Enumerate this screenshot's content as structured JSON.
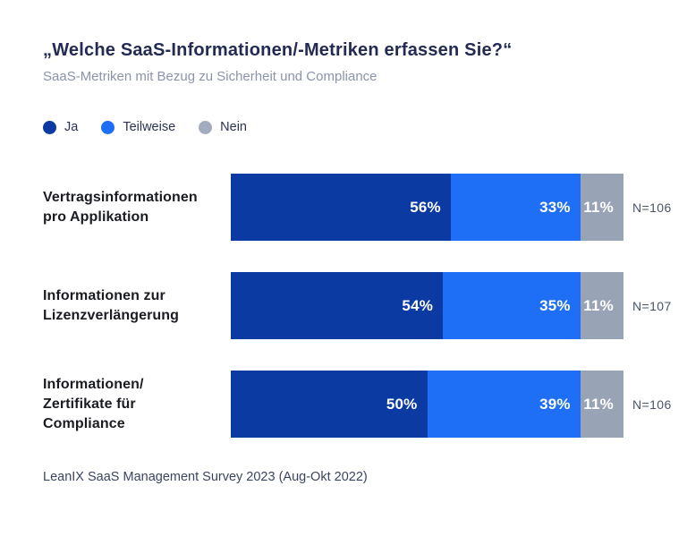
{
  "page": {
    "title": "„Welche SaaS-Informationen/-Metriken erfassen Sie?“",
    "subtitle": "SaaS-Metriken mit Bezug zu Sicherheit und Compliance",
    "source": "LeanIX SaaS Management Survey 2023 (Aug-Okt 2022)"
  },
  "colors": {
    "ja": "#0C3AA3",
    "teilweise": "#1E6FF5",
    "nein": "#99A3B6",
    "background": "#FFFFFF",
    "title_text": "#232B52",
    "subtitle_text": "#8B94A7",
    "row_label_text": "#1B1C22",
    "n_label_text": "#4A5468",
    "source_text": "#3A4560",
    "bar_value_text": "#FFFFFF"
  },
  "legend": {
    "items": [
      {
        "label": "Ja",
        "color": "#0C3AA3"
      },
      {
        "label": "Teilweise",
        "color": "#1E6FF5"
      },
      {
        "label": "Nein",
        "color": "#A3ACBF"
      }
    ]
  },
  "rows": [
    {
      "label": "Vertragsinformationen pro Applikation",
      "n": "N=106",
      "segments": [
        {
          "series": "Ja",
          "value": 56,
          "display": "56%",
          "color": "#0C3AA3"
        },
        {
          "series": "Teilweise",
          "value": 33,
          "display": "33%",
          "color": "#1E6FF5"
        },
        {
          "series": "Nein",
          "value": 11,
          "display": "11%",
          "color": "#99A3B6"
        }
      ]
    },
    {
      "label": "Informationen zur Lizenzverlängerung",
      "n": "N=107",
      "segments": [
        {
          "series": "Ja",
          "value": 54,
          "display": "54%",
          "color": "#0C3AA3"
        },
        {
          "series": "Teilweise",
          "value": 35,
          "display": "35%",
          "color": "#1E6FF5"
        },
        {
          "series": "Nein",
          "value": 11,
          "display": "11%",
          "color": "#99A3B6"
        }
      ]
    },
    {
      "label": "Informationen/ Zertifikate für Compliance",
      "n": "N=106",
      "segments": [
        {
          "series": "Ja",
          "value": 50,
          "display": "50%",
          "color": "#0C3AA3"
        },
        {
          "series": "Teilweise",
          "value": 39,
          "display": "39%",
          "color": "#1E6FF5"
        },
        {
          "series": "Nein",
          "value": 11,
          "display": "11%",
          "color": "#99A3B6"
        }
      ]
    }
  ],
  "chart_data": {
    "type": "bar",
    "orientation": "horizontal",
    "stacked": true,
    "title": "„Welche SaaS-Informationen/-Metriken erfassen Sie?“",
    "subtitle": "SaaS-Metriken mit Bezug zu Sicherheit und Compliance",
    "source": "LeanIX SaaS Management Survey 2023 (Aug-Okt 2022)",
    "categories": [
      "Vertragsinformationen pro Applikation",
      "Informationen zur Lizenzverlängerung",
      "Informationen/ Zertifikate für Compliance"
    ],
    "series": [
      {
        "name": "Ja",
        "values": [
          56,
          54,
          50
        ],
        "color": "#0C3AA3"
      },
      {
        "name": "Teilweise",
        "values": [
          33,
          35,
          39
        ],
        "color": "#1E6FF5"
      },
      {
        "name": "Nein",
        "values": [
          11,
          11,
          11
        ],
        "color": "#99A3B6"
      }
    ],
    "sample_sizes": [
      "N=106",
      "N=107",
      "N=106"
    ],
    "value_suffix": "%",
    "xlim": [
      0,
      100
    ],
    "grid": false,
    "legend_position": "top-left",
    "value_labels": "inside-end"
  }
}
